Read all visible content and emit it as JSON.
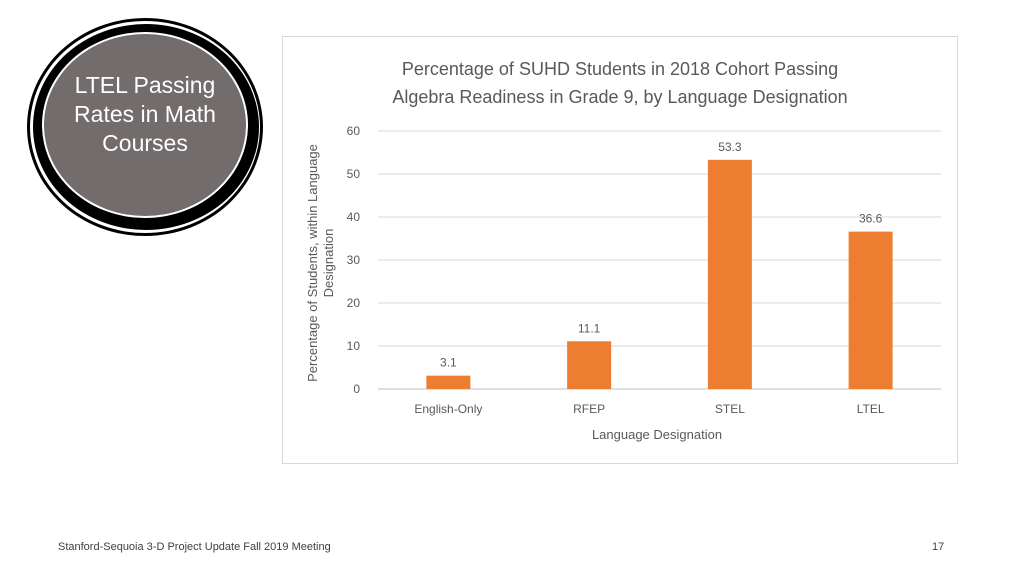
{
  "badge": {
    "text": "LTEL Passing Rates in Math Courses"
  },
  "chart_data": {
    "type": "bar",
    "title_line1": "Percentage of SUHD Students in 2018 Cohort Passing",
    "title_line2": "Algebra Readiness in Grade 9, by Language Designation",
    "xlabel": "Language Designation",
    "ylabel_line1": "Percentage of Students, within Language",
    "ylabel_line2": "Designation",
    "categories": [
      "English-Only",
      "RFEP",
      "STEL",
      "LTEL"
    ],
    "values": [
      3.1,
      11.1,
      53.3,
      36.6
    ],
    "data_labels": [
      "3.1",
      "11.1",
      "53.3",
      "36.6"
    ],
    "yticks": [
      0,
      10,
      20,
      30,
      40,
      50,
      60
    ],
    "ylim": [
      0,
      60
    ],
    "grid": true,
    "legend": "none",
    "bar_color": "#ed7d31"
  },
  "footer": {
    "text": "Stanford-Sequoia 3-D Project Update Fall 2019 Meeting",
    "page_number": "17"
  }
}
